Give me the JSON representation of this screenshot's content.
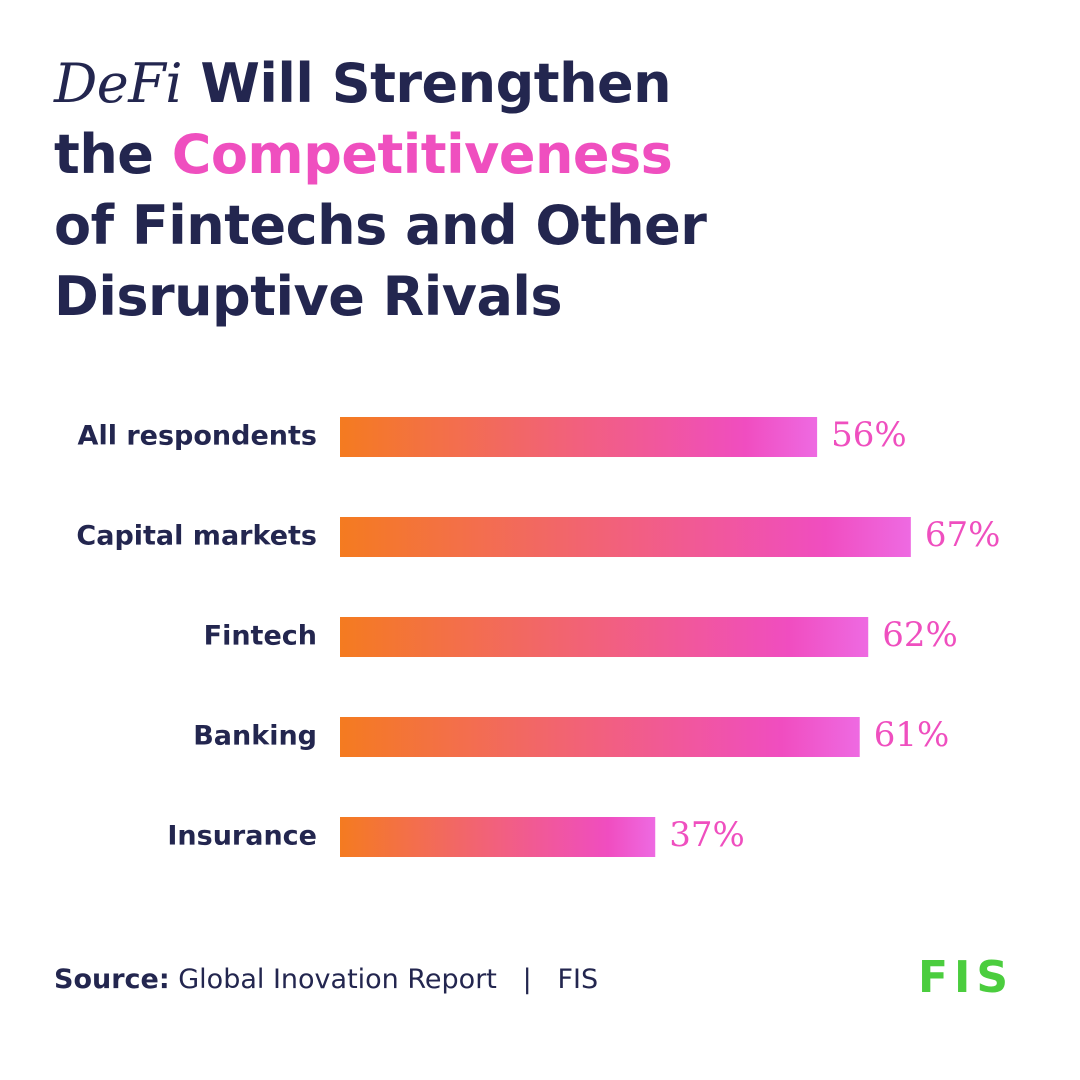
{
  "chart_data": {
    "type": "bar",
    "title": [
      "DeFi",
      "Will Strengthen the",
      "Competitiveness",
      "of Fintechs and Other Disruptive Rivals"
    ],
    "categories": [
      "All respondents",
      "Capital markets",
      "Fintech",
      "Banking",
      "Insurance"
    ],
    "values": [
      56,
      67,
      62,
      61,
      37
    ],
    "value_labels": [
      "56%",
      "67%",
      "62%",
      "61%",
      "37%"
    ],
    "color": [
      "#f47b20",
      "#f04dc0"
    ],
    "source": {
      "label": "Source:",
      "text": "Global Inovation Report",
      "separator": "|",
      "publisher": "FIS"
    },
    "logo": "FIS"
  }
}
